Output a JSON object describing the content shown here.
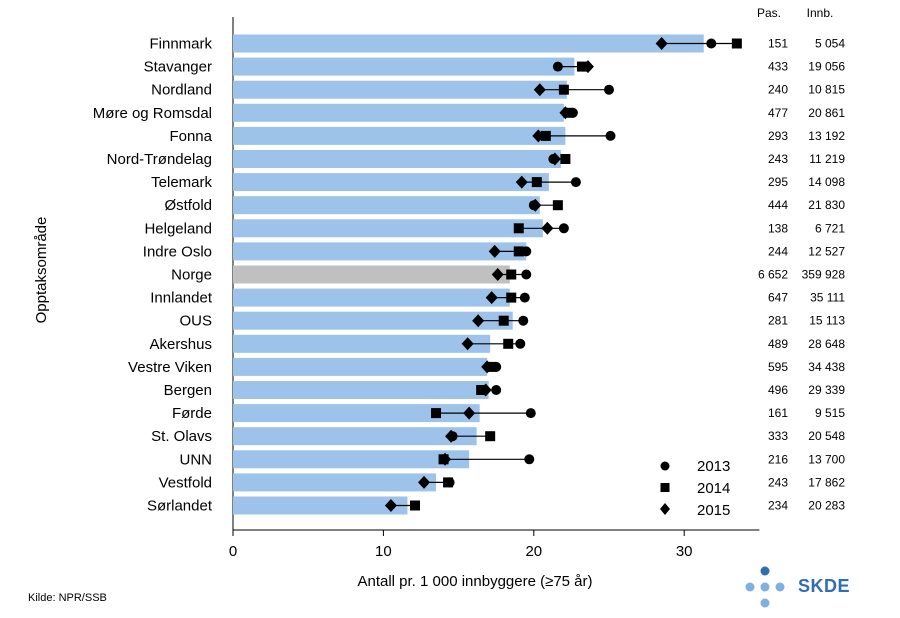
{
  "chart_data": {
    "type": "bar",
    "ylabel": "Opptaksområde",
    "xlabel": "Antall pr. 1 000 innbyggere (≥75 år)",
    "xlim": [
      0,
      35
    ],
    "xticks": [
      0,
      10,
      20,
      30
    ],
    "table_headers": [
      "Pas.",
      "Innb."
    ],
    "legend_title": "",
    "legend": {
      "y2013": "2013",
      "y2014": "2014",
      "y2015": "2015"
    },
    "legend_placement": "bottom-right",
    "colors": {
      "bar": "#9dc3ea",
      "highlight": "#c0c0c0",
      "marker": "#000000"
    },
    "categories": [
      "Finnmark",
      "Stavanger",
      "Nordland",
      "Møre og Romsdal",
      "Fonna",
      "Nord-Trøndelag",
      "Telemark",
      "Østfold",
      "Helgeland",
      "Indre Oslo",
      "Norge",
      "Innlandet",
      "OUS",
      "Akershus",
      "Vestre Viken",
      "Bergen",
      "Førde",
      "St. Olavs",
      "UNN",
      "Vestfold",
      "Sørlandet"
    ],
    "highlight_category": "Norge",
    "bar_values": [
      31.3,
      22.7,
      22.2,
      22.0,
      22.1,
      21.8,
      21.0,
      20.4,
      20.6,
      19.5,
      18.4,
      18.4,
      18.6,
      17.1,
      16.9,
      17.0,
      16.4,
      16.2,
      15.7,
      13.5,
      11.6
    ],
    "series": [
      {
        "name": "2013",
        "marker": "circle",
        "values": [
          31.8,
          21.6,
          25.0,
          22.6,
          25.1,
          21.3,
          22.8,
          20.0,
          22.0,
          19.5,
          19.5,
          19.4,
          19.3,
          19.1,
          17.5,
          17.5,
          19.8,
          14.6,
          19.7,
          14.4,
          12.1
        ]
      },
      {
        "name": "2014",
        "marker": "square",
        "values": [
          33.5,
          23.2,
          22.0,
          22.3,
          20.8,
          22.1,
          20.2,
          21.6,
          19.0,
          19.0,
          18.5,
          18.5,
          18.0,
          18.3,
          17.2,
          16.5,
          13.5,
          17.1,
          14.0,
          14.3,
          12.1
        ]
      },
      {
        "name": "2015",
        "marker": "diamond",
        "values": [
          28.5,
          23.6,
          20.4,
          22.1,
          20.3,
          21.4,
          19.2,
          20.1,
          20.9,
          17.4,
          17.6,
          17.2,
          16.3,
          15.6,
          16.9,
          16.8,
          15.7,
          14.5,
          14.1,
          12.7,
          10.5
        ]
      }
    ],
    "table": [
      [
        "151",
        "5 054"
      ],
      [
        "433",
        "19 056"
      ],
      [
        "240",
        "10 815"
      ],
      [
        "477",
        "20 861"
      ],
      [
        "293",
        "13 192"
      ],
      [
        "243",
        "11 219"
      ],
      [
        "295",
        "14 098"
      ],
      [
        "444",
        "21 830"
      ],
      [
        "138",
        "6 721"
      ],
      [
        "244",
        "12 527"
      ],
      [
        "6 652",
        "359 928"
      ],
      [
        "647",
        "35 111"
      ],
      [
        "281",
        "15 113"
      ],
      [
        "489",
        "28 648"
      ],
      [
        "595",
        "34 438"
      ],
      [
        "496",
        "29 339"
      ],
      [
        "161",
        "9 515"
      ],
      [
        "333",
        "20 548"
      ],
      [
        "216",
        "13 700"
      ],
      [
        "243",
        "17 862"
      ],
      [
        "234",
        "20 283"
      ]
    ]
  },
  "footer": {
    "source": "Kilde: NPR/SSB",
    "logo_text": "SKDE",
    "logo_color": "#2f6db5",
    "logo_dot_color": "#7fb0e0"
  }
}
